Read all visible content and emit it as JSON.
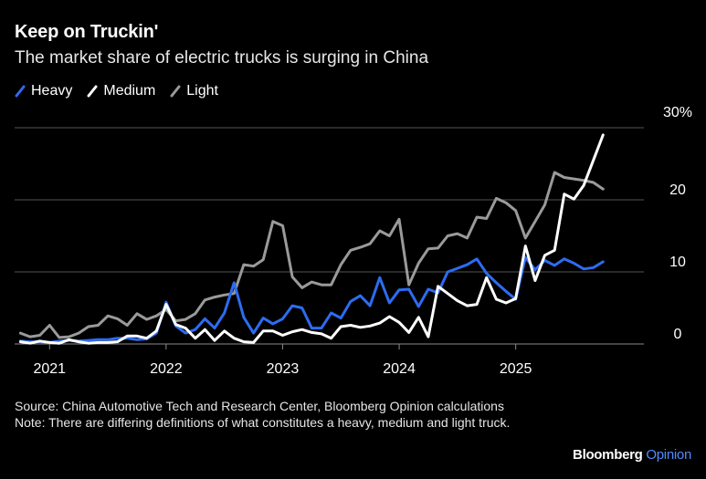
{
  "header": {
    "title": "Keep on Truckin'",
    "subtitle": "The market share of electric trucks is surging in China"
  },
  "legend": [
    {
      "label": "Heavy",
      "color": "#2d6cf0"
    },
    {
      "label": "Medium",
      "color": "#ffffff"
    },
    {
      "label": "Light",
      "color": "#9a9a9a"
    }
  ],
  "chart_data": {
    "type": "line",
    "title": "Keep on Truckin'",
    "subtitle": "The market share of electric trucks is surging in China",
    "xlabel": "",
    "ylabel": "",
    "ylim": [
      0,
      30
    ],
    "xlim": [
      2020.7,
      2026.1
    ],
    "yticks": [
      0,
      10,
      20,
      30
    ],
    "ytick_labels": [
      "0",
      "10",
      "20",
      "30%"
    ],
    "xticks": [
      2021,
      2022,
      2023,
      2024,
      2025
    ],
    "xtick_labels": [
      "2021",
      "2022",
      "2023",
      "2024",
      "2025"
    ],
    "grid": true,
    "legend_position": "top-left",
    "x_start": 2020.75,
    "x_step": 0.08333,
    "series": [
      {
        "name": "Heavy",
        "color": "#2d6cf0",
        "values": [
          0.4,
          0.3,
          0.3,
          0.2,
          0.4,
          0.5,
          0.4,
          0.5,
          0.6,
          0.6,
          0.8,
          0.8,
          0.6,
          0.7,
          1.5,
          5.8,
          2.5,
          1.5,
          2.0,
          3.5,
          2.2,
          4.3,
          8.5,
          3.7,
          1.5,
          3.6,
          2.8,
          3.5,
          5.3,
          5.0,
          2.2,
          2.2,
          4.3,
          3.6,
          5.9,
          6.7,
          5.3,
          9.2,
          5.7,
          7.5,
          7.6,
          5.2,
          7.6,
          7.1,
          10.0,
          10.5,
          11.0,
          11.8,
          9.8,
          8.5,
          7.3,
          6.2,
          12.0,
          10.3,
          11.6,
          10.9,
          11.8,
          11.2,
          10.4,
          10.6,
          11.4
        ]
      },
      {
        "name": "Medium",
        "color": "#ffffff",
        "values": [
          0.3,
          0.1,
          0.4,
          0.2,
          0.1,
          0.6,
          0.3,
          0.1,
          0.2,
          0.2,
          0.3,
          1.1,
          1.1,
          0.8,
          1.8,
          5.5,
          2.7,
          2.2,
          0.8,
          2.0,
          0.5,
          1.8,
          0.8,
          0.3,
          0.2,
          1.8,
          1.8,
          1.2,
          1.7,
          2.0,
          1.6,
          1.4,
          0.8,
          2.4,
          2.6,
          2.3,
          2.5,
          2.9,
          3.8,
          3.0,
          1.6,
          3.7,
          1.0,
          8.0,
          7.0,
          6.0,
          5.3,
          5.5,
          9.2,
          6.2,
          5.7,
          6.3,
          13.6,
          8.8,
          12.3,
          13.0,
          20.8,
          20.1,
          22.0,
          25.5,
          29.0
        ]
      },
      {
        "name": "Light",
        "color": "#9a9a9a",
        "values": [
          1.5,
          1.0,
          1.2,
          2.6,
          0.9,
          1.0,
          1.5,
          2.4,
          2.6,
          3.9,
          3.5,
          2.6,
          4.2,
          3.4,
          3.9,
          4.8,
          3.2,
          3.4,
          4.2,
          6.1,
          6.5,
          6.8,
          7.0,
          11.0,
          10.8,
          11.7,
          17.0,
          16.4,
          9.3,
          7.8,
          8.6,
          8.2,
          8.2,
          11.0,
          13.0,
          13.4,
          13.9,
          15.7,
          15.0,
          17.3,
          8.2,
          11.2,
          13.2,
          13.3,
          15.0,
          15.3,
          14.7,
          17.6,
          17.4,
          20.2,
          19.6,
          18.5,
          14.7,
          17.0,
          19.3,
          23.8,
          23.1,
          22.9,
          22.7,
          22.4,
          21.5
        ]
      }
    ]
  },
  "footer": {
    "source": "Source: China Automotive Tech and Research Center, Bloomberg Opinion calculations",
    "note": "Note: There are differing definitions of what constitutes a heavy, medium and light truck.",
    "brand_main": "Bloomberg",
    "brand_sub": "Opinion"
  }
}
